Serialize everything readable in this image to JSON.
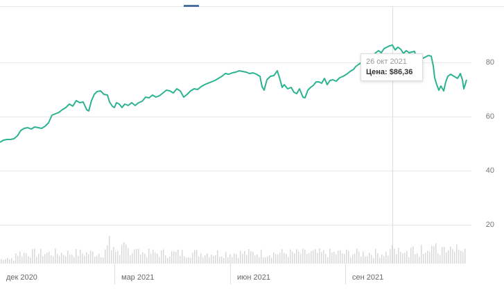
{
  "chart_data": {
    "type": "line",
    "title": "",
    "xlabel": "",
    "ylabel": "",
    "ylim": [
      0,
      92
    ],
    "y_ticks": [
      20,
      40,
      60,
      80
    ],
    "x_ticks": [
      "дек 2020",
      "мар 2021",
      "июн 2021",
      "сен 2021"
    ],
    "grid": true,
    "series": [
      {
        "name": "Цена",
        "color": "#2bb391",
        "x": [
          "2020-11-20",
          "2020-12-01",
          "2020-12-10",
          "2020-12-28",
          "2021-01-15",
          "2021-01-22",
          "2021-02-01",
          "2021-02-08",
          "2021-02-15",
          "2021-02-22",
          "2021-03-08",
          "2021-03-30",
          "2021-04-15",
          "2021-05-05",
          "2021-06-01",
          "2021-06-15",
          "2021-06-25",
          "2021-07-08",
          "2021-07-20",
          "2021-08-01",
          "2021-08-25",
          "2021-09-05",
          "2021-09-18",
          "2021-10-01",
          "2021-10-15",
          "2021-10-20",
          "2021-10-28",
          "2021-11-01",
          "2021-11-05",
          "2021-11-12",
          "2021-11-20",
          "2021-11-24",
          "2021-11-26"
        ],
        "values": [
          50.5,
          52,
          56,
          56.5,
          63,
          66,
          62.5,
          69,
          68,
          63,
          65,
          69.5,
          67,
          72,
          76.5,
          69.5,
          77,
          69.5,
          67,
          72.5,
          75,
          79.5,
          84,
          86.4,
          83.5,
          80,
          82.5,
          75,
          70,
          76.5,
          74.5,
          70.5,
          74
        ]
      }
    ],
    "volume": {
      "color": "#d9d9d9",
      "note": "volume bars along bottom, relative heights"
    },
    "annotation": {
      "crosshair_x": "2021-10-26",
      "tooltip_date": "26 окт 2021",
      "tooltip_label": "Цена:",
      "tooltip_value": "$86,36"
    }
  },
  "axis": {
    "y": [
      "80",
      "60",
      "40",
      "20"
    ],
    "x": [
      "дек 2020",
      "мар 2021",
      "июн 2021",
      "сен 2021"
    ]
  },
  "tooltip": {
    "date": "26 окт 2021",
    "price": "Цена: $86,36"
  },
  "colors": {
    "line": "#2bb391",
    "grid": "#e8e8e8",
    "volume": "#d9d9d9",
    "accent_tab": "#4a6fa5"
  }
}
